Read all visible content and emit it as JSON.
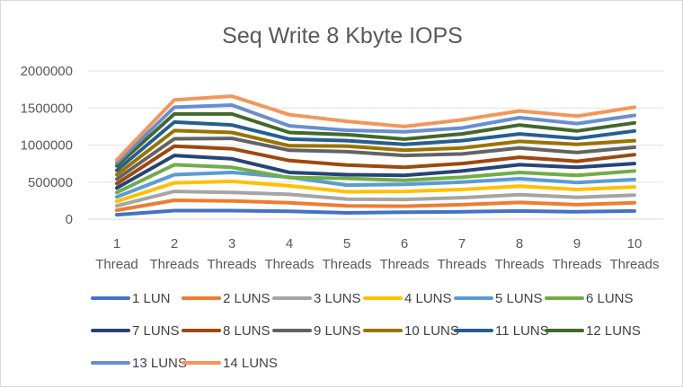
{
  "chart_data": {
    "type": "line",
    "title": "Seq Write 8 Kbyte IOPS",
    "xlabel": "",
    "ylabel": "",
    "categories": [
      [
        "1",
        "Thread"
      ],
      [
        "2",
        "Threads"
      ],
      [
        "3",
        "Threads"
      ],
      [
        "4",
        "Threads"
      ],
      [
        "5",
        "Threads"
      ],
      [
        "6",
        "Threads"
      ],
      [
        "7",
        "Threads"
      ],
      [
        "8",
        "Threads"
      ],
      [
        "9",
        "Threads"
      ],
      [
        "10",
        "Threads"
      ]
    ],
    "ylim": [
      0,
      2000000
    ],
    "yticks": [
      0,
      500000,
      1000000,
      1500000,
      2000000
    ],
    "ytick_labels": [
      "0",
      "500000",
      "1000000",
      "1500000",
      "2000000"
    ],
    "grid": true,
    "legend_position": "bottom",
    "series": [
      {
        "name": "1 LUN",
        "color": "#4472C4",
        "values": [
          60000,
          115000,
          115000,
          105000,
          85000,
          95000,
          100000,
          110000,
          100000,
          110000
        ]
      },
      {
        "name": "2 LUNS",
        "color": "#ED7D31",
        "values": [
          120000,
          255000,
          245000,
          220000,
          180000,
          175000,
          195000,
          225000,
          195000,
          220000
        ]
      },
      {
        "name": "3 LUNS",
        "color": "#A5A5A5",
        "values": [
          180000,
          375000,
          360000,
          335000,
          270000,
          265000,
          290000,
          330000,
          295000,
          325000
        ]
      },
      {
        "name": "4 LUNS",
        "color": "#FFC000",
        "values": [
          240000,
          490000,
          510000,
          450000,
          370000,
          375000,
          400000,
          445000,
          400000,
          435000
        ]
      },
      {
        "name": "5 LUNS",
        "color": "#5B9BD5",
        "values": [
          300000,
          600000,
          630000,
          565000,
          460000,
          470000,
          500000,
          545000,
          495000,
          535000
        ]
      },
      {
        "name": "6 LUNS",
        "color": "#70AD47",
        "values": [
          360000,
          735000,
          700000,
          560000,
          550000,
          525000,
          565000,
          630000,
          590000,
          650000
        ]
      },
      {
        "name": "7 LUNS",
        "color": "#264478",
        "values": [
          420000,
          860000,
          815000,
          630000,
          600000,
          590000,
          650000,
          735000,
          700000,
          750000
        ]
      },
      {
        "name": "8 LUNS",
        "color": "#9E480E",
        "values": [
          480000,
          985000,
          950000,
          790000,
          730000,
          700000,
          750000,
          835000,
          780000,
          870000
        ]
      },
      {
        "name": "9 LUNS",
        "color": "#636363",
        "values": [
          540000,
          1085000,
          1090000,
          930000,
          910000,
          860000,
          880000,
          960000,
          900000,
          970000
        ]
      },
      {
        "name": "10 LUNS",
        "color": "#997300",
        "values": [
          600000,
          1195000,
          1170000,
          990000,
          985000,
          930000,
          960000,
          1050000,
          1010000,
          1060000
        ]
      },
      {
        "name": "11 LUNS",
        "color": "#255E91",
        "values": [
          660000,
          1310000,
          1270000,
          1080000,
          1060000,
          1010000,
          1060000,
          1150000,
          1090000,
          1190000
        ]
      },
      {
        "name": "12 LUNS",
        "color": "#43682B",
        "values": [
          720000,
          1420000,
          1420000,
          1170000,
          1140000,
          1080000,
          1150000,
          1270000,
          1190000,
          1300000
        ]
      },
      {
        "name": "13 LUNS",
        "color": "#698ED0",
        "values": [
          760000,
          1510000,
          1540000,
          1260000,
          1200000,
          1180000,
          1230000,
          1370000,
          1290000,
          1400000
        ]
      },
      {
        "name": "14 LUNS",
        "color": "#F1975A",
        "values": [
          800000,
          1610000,
          1660000,
          1410000,
          1320000,
          1250000,
          1340000,
          1460000,
          1390000,
          1510000
        ]
      }
    ]
  }
}
